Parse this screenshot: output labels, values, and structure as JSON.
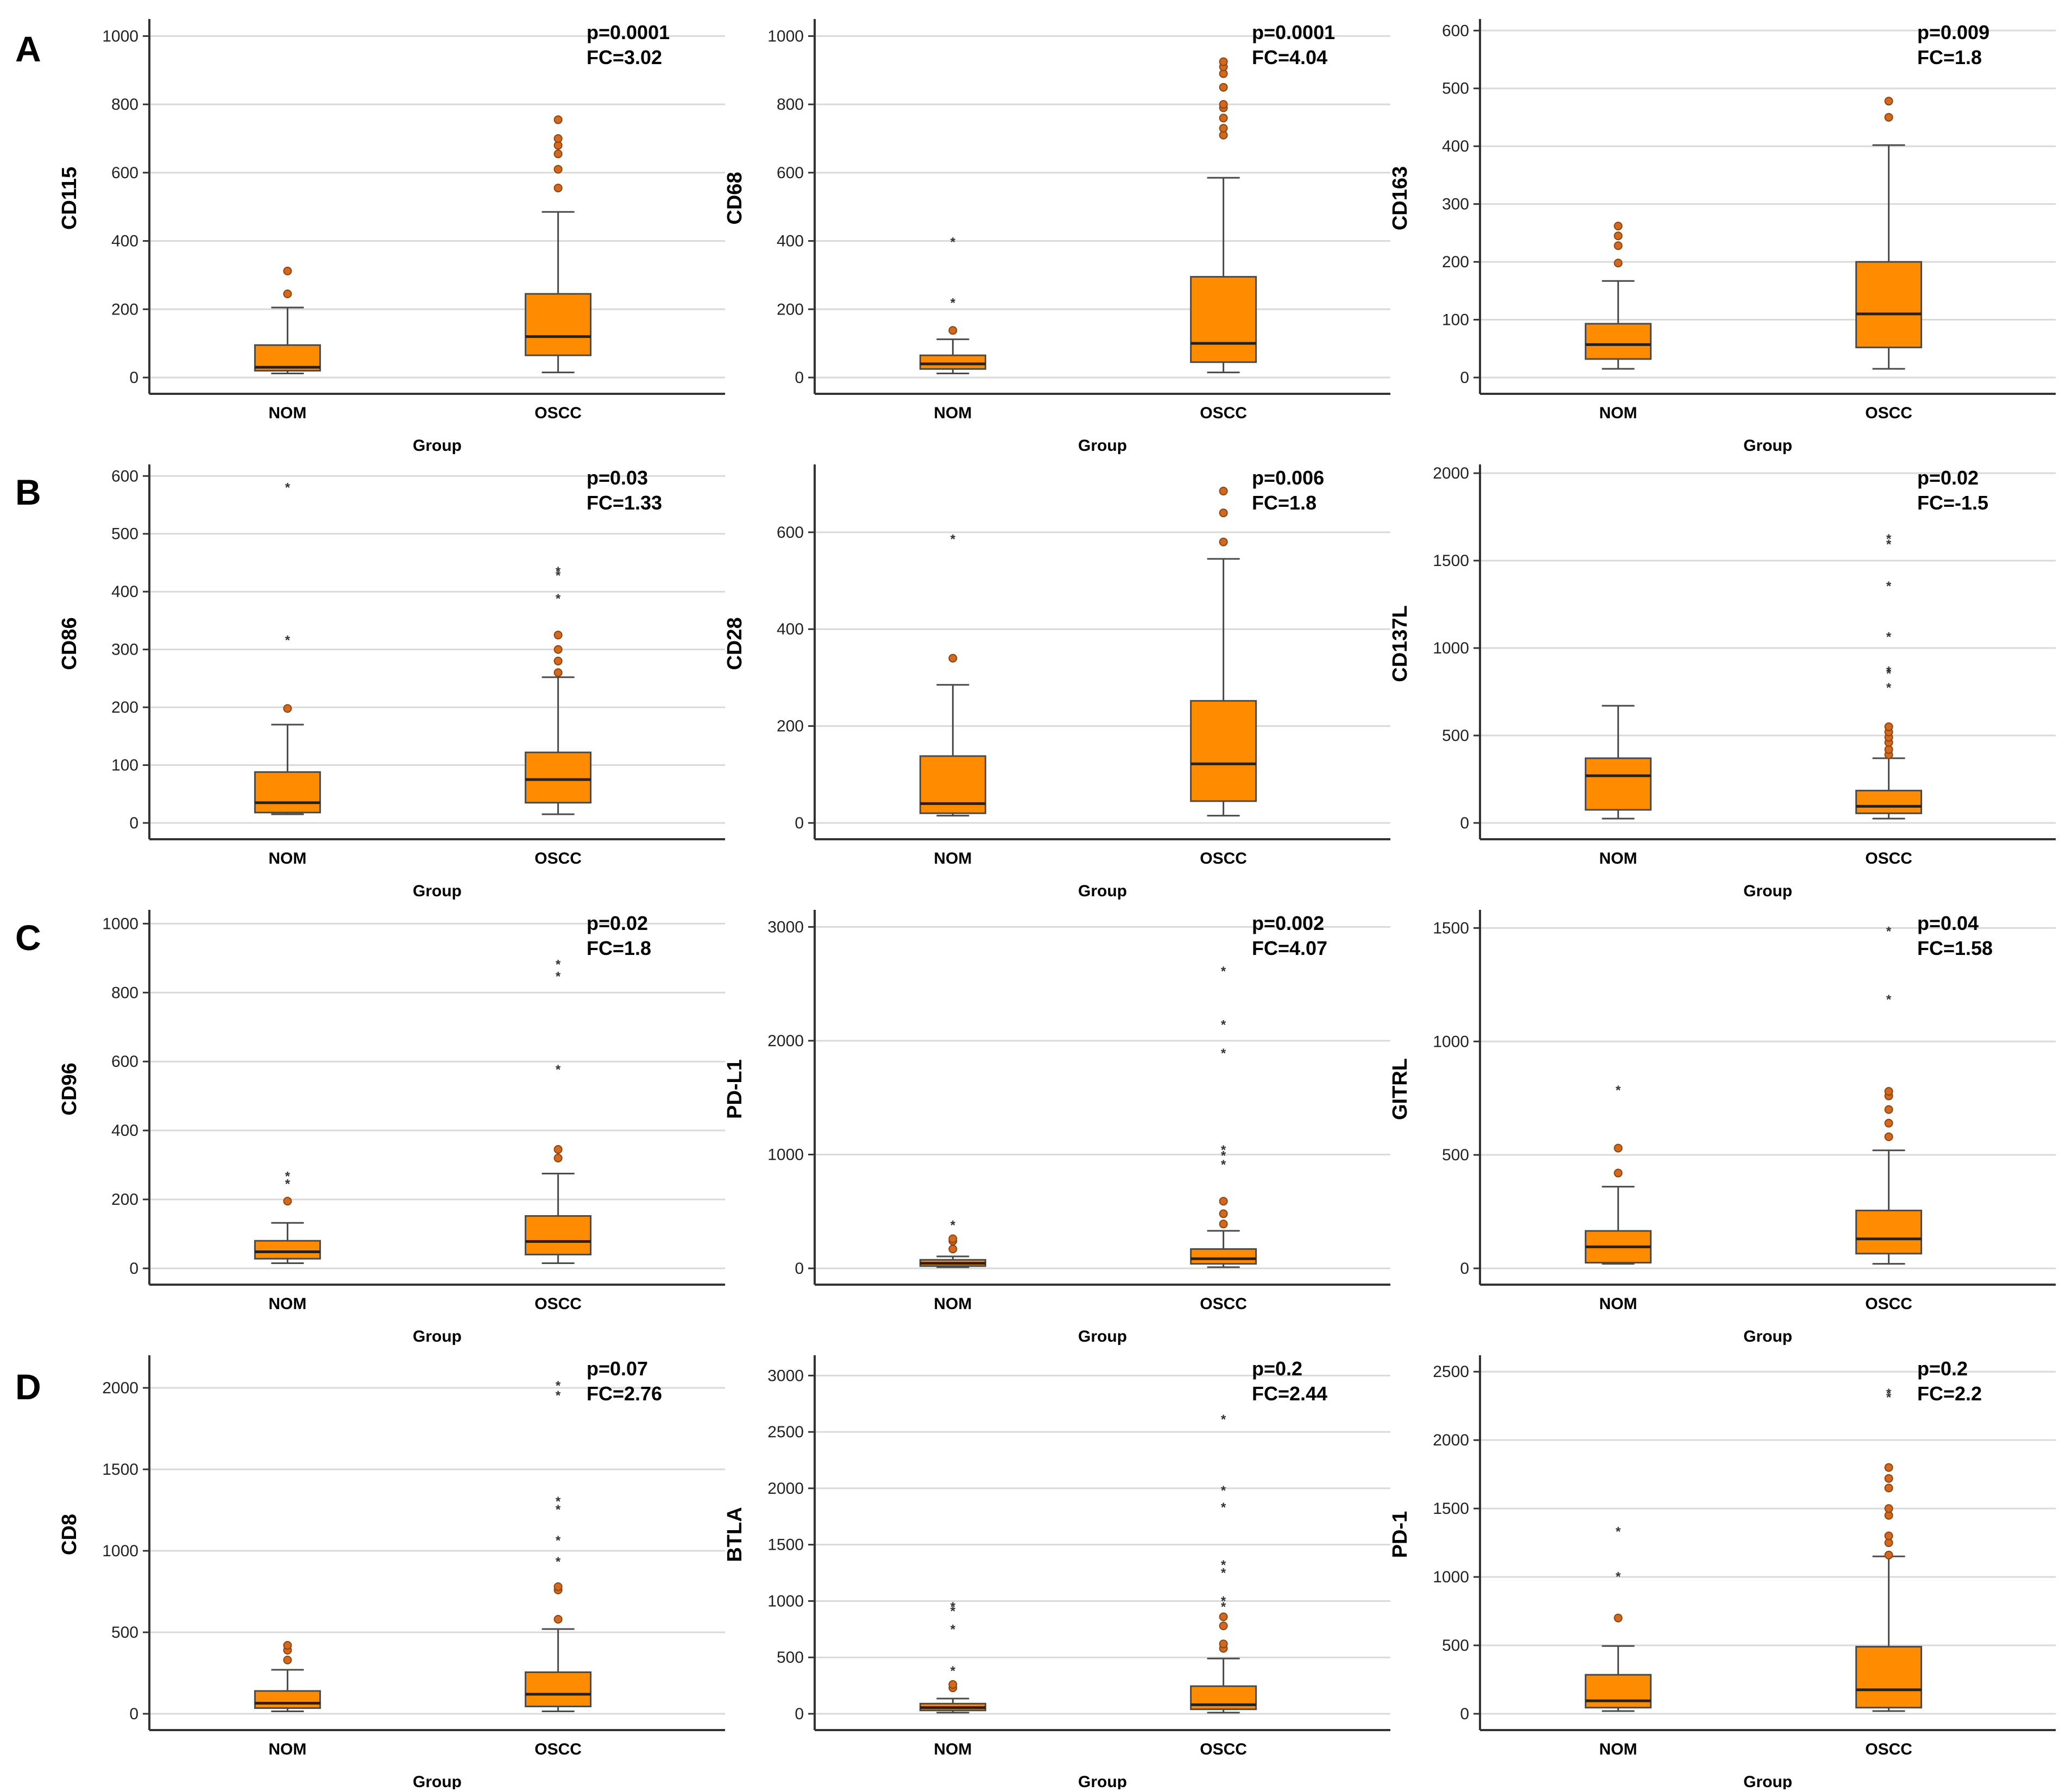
{
  "colors": {
    "box_fill": "#FF8C00",
    "box_stroke": "#4a4a4a",
    "outlier_fill": "#D2691E",
    "extreme_marker": "#333333",
    "gridline": "#d9d9d9",
    "axis": "#333333"
  },
  "panel_labels": [
    "A",
    "B",
    "C",
    "D"
  ],
  "chart_data": [
    {
      "type": "box",
      "panel": "A",
      "title": "",
      "ylabel": "CD115",
      "xlabel": "Group",
      "ylim": [
        0,
        1050
      ],
      "yticks": [
        0,
        200,
        400,
        600,
        800,
        1000
      ],
      "categories": [
        "NOM",
        "OSCC"
      ],
      "annotation": {
        "p": "p=0.0001",
        "fc": "FC=3.02"
      },
      "boxes": [
        {
          "group": "NOM",
          "min": 12,
          "q1": 20,
          "median": 30,
          "q3": 95,
          "max": 205,
          "outliers": [
            245,
            312
          ],
          "extremes": []
        },
        {
          "group": "OSCC",
          "min": 15,
          "q1": 65,
          "median": 120,
          "q3": 245,
          "max": 485,
          "outliers": [
            555,
            610,
            655,
            680,
            700,
            755
          ],
          "extremes": []
        }
      ]
    },
    {
      "type": "box",
      "panel": "A",
      "title": "",
      "ylabel": "CD68",
      "xlabel": "Group",
      "ylim": [
        0,
        1050
      ],
      "yticks": [
        0,
        200,
        400,
        600,
        800,
        1000
      ],
      "categories": [
        "NOM",
        "OSCC"
      ],
      "annotation": {
        "p": "p=0.0001",
        "fc": "FC=4.04"
      },
      "boxes": [
        {
          "group": "NOM",
          "min": 12,
          "q1": 25,
          "median": 40,
          "q3": 65,
          "max": 112,
          "outliers": [
            138
          ],
          "extremes": [
            222,
            400
          ]
        },
        {
          "group": "OSCC",
          "min": 15,
          "q1": 45,
          "median": 100,
          "q3": 295,
          "max": 585,
          "outliers": [
            710,
            730,
            760,
            790,
            800,
            850,
            890,
            910,
            925
          ],
          "extremes": []
        }
      ]
    },
    {
      "type": "box",
      "panel": "A",
      "title": "",
      "ylabel": "CD163",
      "xlabel": "Group",
      "ylim": [
        0,
        620
      ],
      "yticks": [
        0,
        100,
        200,
        300,
        400,
        500,
        600
      ],
      "categories": [
        "NOM",
        "OSCC"
      ],
      "annotation": {
        "p": "p=0.009",
        "fc": "FC=1.8"
      },
      "boxes": [
        {
          "group": "NOM",
          "min": 15,
          "q1": 32,
          "median": 57,
          "q3": 93,
          "max": 167,
          "outliers": [
            198,
            228,
            245,
            262
          ],
          "extremes": []
        },
        {
          "group": "OSCC",
          "min": 15,
          "q1": 52,
          "median": 110,
          "q3": 200,
          "max": 402,
          "outliers": [
            450,
            478
          ],
          "extremes": []
        }
      ]
    },
    {
      "type": "box",
      "panel": "B",
      "title": "",
      "ylabel": "CD86",
      "xlabel": "Group",
      "ylim": [
        0,
        620
      ],
      "yticks": [
        0,
        100,
        200,
        300,
        400,
        500,
        600
      ],
      "categories": [
        "NOM",
        "OSCC"
      ],
      "annotation": {
        "p": "p=0.03",
        "fc": "FC=1.33"
      },
      "boxes": [
        {
          "group": "NOM",
          "min": 15,
          "q1": 18,
          "median": 35,
          "q3": 88,
          "max": 170,
          "outliers": [
            198
          ],
          "extremes": [
            318,
            582
          ]
        },
        {
          "group": "OSCC",
          "min": 15,
          "q1": 35,
          "median": 75,
          "q3": 122,
          "max": 252,
          "outliers": [
            260,
            280,
            300,
            325
          ],
          "extremes": [
            390,
            430,
            437
          ]
        }
      ]
    },
    {
      "type": "box",
      "panel": "B",
      "title": "",
      "ylabel": "CD28",
      "xlabel": "Group",
      "ylim": [
        0,
        740
      ],
      "yticks": [
        0,
        200,
        400,
        600
      ],
      "categories": [
        "NOM",
        "OSCC"
      ],
      "annotation": {
        "p": "p=0.006",
        "fc": "FC=1.8"
      },
      "boxes": [
        {
          "group": "NOM",
          "min": 15,
          "q1": 20,
          "median": 40,
          "q3": 138,
          "max": 285,
          "outliers": [
            340
          ],
          "extremes": [
            588
          ]
        },
        {
          "group": "OSCC",
          "min": 15,
          "q1": 45,
          "median": 122,
          "q3": 252,
          "max": 545,
          "outliers": [
            580,
            640,
            685
          ],
          "extremes": []
        }
      ]
    },
    {
      "type": "box",
      "panel": "B",
      "title": "",
      "ylabel": "CD137L",
      "xlabel": "Group",
      "ylim": [
        0,
        2050
      ],
      "yticks": [
        0,
        500,
        1000,
        1500,
        2000
      ],
      "categories": [
        "NOM",
        "OSCC"
      ],
      "annotation": {
        "p": "p=0.02",
        "fc": "FC=-1.5"
      },
      "boxes": [
        {
          "group": "NOM",
          "min": 25,
          "q1": 75,
          "median": 270,
          "q3": 370,
          "max": 670,
          "outliers": [],
          "extremes": []
        },
        {
          "group": "OSCC",
          "min": 25,
          "q1": 55,
          "median": 95,
          "q3": 185,
          "max": 370,
          "outliers": [
            390,
            420,
            460,
            490,
            520,
            550
          ],
          "extremes": [
            780,
            860,
            875,
            1070,
            1360,
            1600,
            1630
          ]
        }
      ]
    },
    {
      "type": "box",
      "panel": "C",
      "title": "",
      "ylabel": "CD96",
      "xlabel": "Group",
      "ylim": [
        0,
        1040
      ],
      "yticks": [
        0,
        200,
        400,
        600,
        800,
        1000
      ],
      "categories": [
        "NOM",
        "OSCC"
      ],
      "annotation": {
        "p": "p=0.02",
        "fc": "FC=1.8"
      },
      "boxes": [
        {
          "group": "NOM",
          "min": 15,
          "q1": 28,
          "median": 48,
          "q3": 80,
          "max": 132,
          "outliers": [
            195
          ],
          "extremes": [
            248,
            270
          ]
        },
        {
          "group": "OSCC",
          "min": 15,
          "q1": 40,
          "median": 78,
          "q3": 152,
          "max": 275,
          "outliers": [
            320,
            345
          ],
          "extremes": [
            580,
            850,
            885
          ]
        }
      ]
    },
    {
      "type": "box",
      "panel": "C",
      "title": "",
      "ylabel": "PD-L1",
      "xlabel": "Group",
      "ylim": [
        0,
        3150
      ],
      "yticks": [
        0,
        1000,
        2000,
        3000
      ],
      "categories": [
        "NOM",
        "OSCC"
      ],
      "annotation": {
        "p": "p=0.002",
        "fc": "FC=4.07"
      },
      "boxes": [
        {
          "group": "NOM",
          "min": 10,
          "q1": 20,
          "median": 45,
          "q3": 75,
          "max": 105,
          "outliers": [
            170,
            240,
            260
          ],
          "extremes": [
            390
          ]
        },
        {
          "group": "OSCC",
          "min": 10,
          "q1": 40,
          "median": 85,
          "q3": 170,
          "max": 330,
          "outliers": [
            390,
            480,
            590
          ],
          "extremes": [
            920,
            1000,
            1050,
            1900,
            2150,
            2620
          ]
        }
      ]
    },
    {
      "type": "box",
      "panel": "C",
      "title": "",
      "ylabel": "GITRL",
      "xlabel": "Group",
      "ylim": [
        0,
        1580
      ],
      "yticks": [
        0,
        500,
        1000,
        1500
      ],
      "categories": [
        "NOM",
        "OSCC"
      ],
      "annotation": {
        "p": "p=0.04",
        "fc": "FC=1.58"
      },
      "boxes": [
        {
          "group": "NOM",
          "min": 20,
          "q1": 25,
          "median": 95,
          "q3": 165,
          "max": 360,
          "outliers": [
            420,
            530
          ],
          "extremes": [
            790
          ]
        },
        {
          "group": "OSCC",
          "min": 20,
          "q1": 65,
          "median": 130,
          "q3": 255,
          "max": 520,
          "outliers": [
            580,
            640,
            700,
            760,
            780
          ],
          "extremes": [
            1190,
            1490
          ]
        }
      ]
    },
    {
      "type": "box",
      "panel": "D",
      "title": "",
      "ylabel": "CD8",
      "xlabel": "Group",
      "ylim": [
        0,
        2200
      ],
      "yticks": [
        0,
        500,
        1000,
        1500,
        2000
      ],
      "categories": [
        "NOM",
        "OSCC"
      ],
      "annotation": {
        "p": "p=0.07",
        "fc": "FC=2.76"
      },
      "boxes": [
        {
          "group": "NOM",
          "min": 15,
          "q1": 35,
          "median": 65,
          "q3": 140,
          "max": 270,
          "outliers": [
            330,
            390,
            420
          ],
          "extremes": []
        },
        {
          "group": "OSCC",
          "min": 15,
          "q1": 45,
          "median": 120,
          "q3": 255,
          "max": 520,
          "outliers": [
            580,
            760,
            780
          ],
          "extremes": [
            940,
            1070,
            1260,
            1310,
            1960,
            2020
          ]
        }
      ]
    },
    {
      "type": "box",
      "panel": "D",
      "title": "",
      "ylabel": "BTLA",
      "xlabel": "Group",
      "ylim": [
        0,
        3180
      ],
      "yticks": [
        0,
        500,
        1000,
        1500,
        2000,
        2500,
        3000
      ],
      "categories": [
        "NOM",
        "OSCC"
      ],
      "annotation": {
        "p": "p=0.2",
        "fc": "FC=2.44"
      },
      "boxes": [
        {
          "group": "NOM",
          "min": 10,
          "q1": 30,
          "median": 55,
          "q3": 90,
          "max": 135,
          "outliers": [
            230,
            260
          ],
          "extremes": [
            390,
            760,
            920,
            960
          ]
        },
        {
          "group": "OSCC",
          "min": 10,
          "q1": 40,
          "median": 80,
          "q3": 245,
          "max": 490,
          "outliers": [
            580,
            620,
            780,
            860
          ],
          "extremes": [
            960,
            1010,
            1260,
            1330,
            1840,
            1990,
            2620
          ]
        }
      ]
    },
    {
      "type": "box",
      "panel": "D",
      "title": "",
      "ylabel": "PD-1",
      "xlabel": "Group",
      "ylim": [
        0,
        2620
      ],
      "yticks": [
        0,
        500,
        1000,
        1500,
        2000,
        2500
      ],
      "categories": [
        "NOM",
        "OSCC"
      ],
      "annotation": {
        "p": "p=0.2",
        "fc": "FC=2.2"
      },
      "boxes": [
        {
          "group": "NOM",
          "min": 20,
          "q1": 45,
          "median": 95,
          "q3": 285,
          "max": 495,
          "outliers": [
            700
          ],
          "extremes": [
            1010,
            1340
          ]
        },
        {
          "group": "OSCC",
          "min": 20,
          "q1": 45,
          "median": 175,
          "q3": 490,
          "max": 1150,
          "outliers": [
            1160,
            1250,
            1300,
            1450,
            1500,
            1650,
            1720,
            1800
          ],
          "extremes": [
            2320,
            2350
          ]
        }
      ]
    }
  ]
}
